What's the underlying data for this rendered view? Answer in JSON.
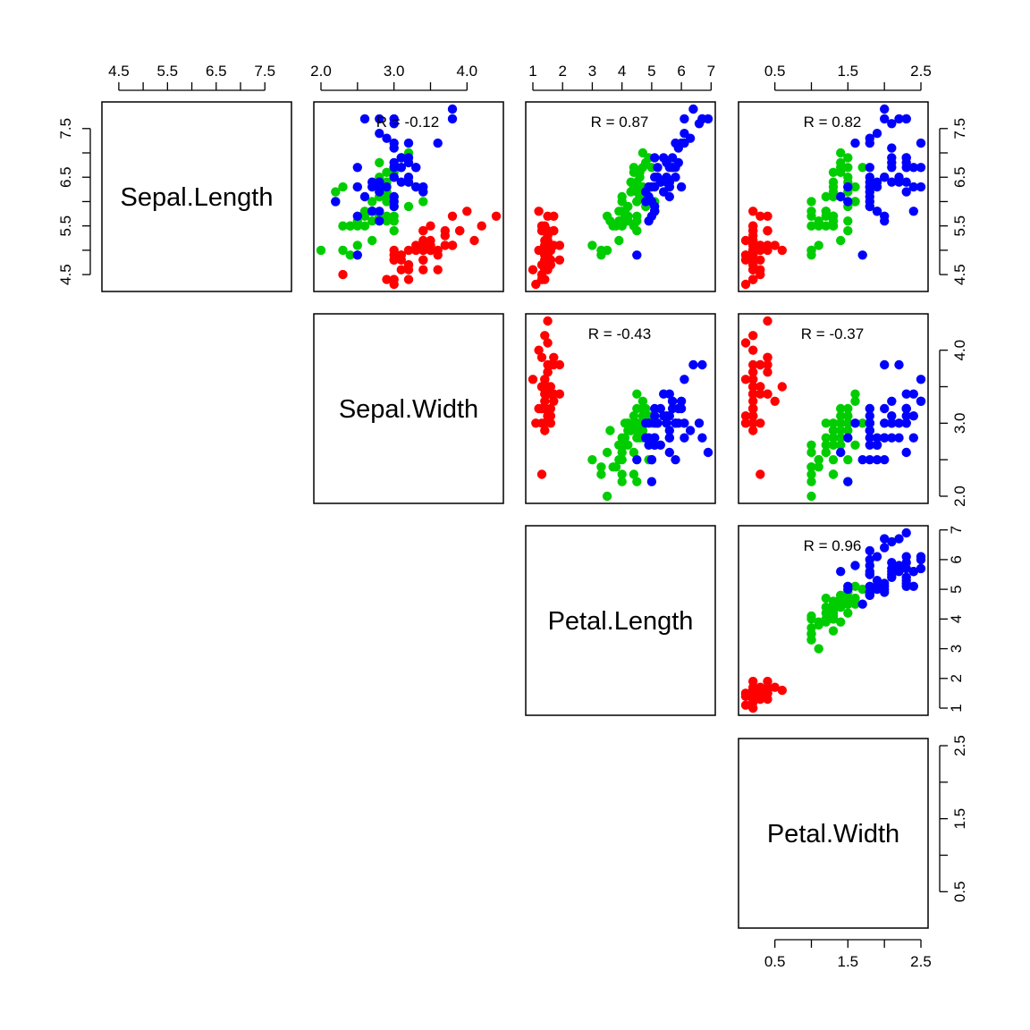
{
  "chart_data": {
    "type": "scatter",
    "variables": [
      "Sepal.Length",
      "Sepal.Width",
      "Petal.Length",
      "Petal.Width"
    ],
    "layout": "upper-triangle scatterplot matrix with variable names on diagonal",
    "ranges": {
      "Sepal.Length": [
        4.3,
        7.9
      ],
      "Sepal.Width": [
        2.0,
        4.4
      ],
      "Petal.Length": [
        1.0,
        6.9
      ],
      "Petal.Width": [
        0.1,
        2.5
      ]
    },
    "ticks": {
      "Sepal.Length": [
        "4.5",
        "5.5",
        "6.5",
        "7.5"
      ],
      "Sepal.Width": [
        "2.0",
        "3.0",
        "4.0"
      ],
      "Petal.Length": [
        "1",
        "2",
        "3",
        "4",
        "5",
        "6",
        "7"
      ],
      "Petal.Width": [
        "0.5",
        "1.5",
        "2.5"
      ]
    },
    "minor_ticks_at_half_steps": true,
    "panels": [
      {
        "x": "Sepal.Width",
        "y": "Sepal.Length",
        "r_label": "R = -0.12"
      },
      {
        "x": "Petal.Length",
        "y": "Sepal.Length",
        "r_label": "R = 0.87"
      },
      {
        "x": "Petal.Width",
        "y": "Sepal.Length",
        "r_label": "R = 0.82"
      },
      {
        "x": "Petal.Length",
        "y": "Sepal.Width",
        "r_label": "R = -0.43"
      },
      {
        "x": "Petal.Width",
        "y": "Sepal.Width",
        "r_label": "R = -0.37"
      },
      {
        "x": "Petal.Width",
        "y": "Petal.Length",
        "r_label": "R = 0.96"
      }
    ],
    "series": [
      {
        "color": "#ff0000",
        "points": [
          [
            5.1,
            3.5,
            1.4,
            0.2
          ],
          [
            4.9,
            3.0,
            1.4,
            0.2
          ],
          [
            4.7,
            3.2,
            1.3,
            0.2
          ],
          [
            4.6,
            3.1,
            1.5,
            0.2
          ],
          [
            5.0,
            3.6,
            1.4,
            0.2
          ],
          [
            5.4,
            3.9,
            1.7,
            0.4
          ],
          [
            4.6,
            3.4,
            1.4,
            0.3
          ],
          [
            5.0,
            3.4,
            1.5,
            0.2
          ],
          [
            4.4,
            2.9,
            1.4,
            0.2
          ],
          [
            4.9,
            3.1,
            1.5,
            0.1
          ],
          [
            5.4,
            3.7,
            1.5,
            0.2
          ],
          [
            4.8,
            3.4,
            1.6,
            0.2
          ],
          [
            4.8,
            3.0,
            1.4,
            0.1
          ],
          [
            4.3,
            3.0,
            1.1,
            0.1
          ],
          [
            5.8,
            4.0,
            1.2,
            0.2
          ],
          [
            5.7,
            4.4,
            1.5,
            0.4
          ],
          [
            5.4,
            3.9,
            1.3,
            0.4
          ],
          [
            5.1,
            3.5,
            1.4,
            0.3
          ],
          [
            5.7,
            3.8,
            1.7,
            0.3
          ],
          [
            5.1,
            3.8,
            1.5,
            0.3
          ],
          [
            5.4,
            3.4,
            1.7,
            0.2
          ],
          [
            5.1,
            3.7,
            1.5,
            0.4
          ],
          [
            4.6,
            3.6,
            1.0,
            0.2
          ],
          [
            5.1,
            3.3,
            1.7,
            0.5
          ],
          [
            4.8,
            3.4,
            1.9,
            0.2
          ],
          [
            5.0,
            3.0,
            1.6,
            0.2
          ],
          [
            5.0,
            3.4,
            1.6,
            0.4
          ],
          [
            5.2,
            3.5,
            1.5,
            0.2
          ],
          [
            5.2,
            3.4,
            1.4,
            0.2
          ],
          [
            4.7,
            3.2,
            1.6,
            0.2
          ],
          [
            4.8,
            3.1,
            1.6,
            0.2
          ],
          [
            5.4,
            3.4,
            1.5,
            0.4
          ],
          [
            5.2,
            4.1,
            1.5,
            0.1
          ],
          [
            5.5,
            4.2,
            1.4,
            0.2
          ],
          [
            4.9,
            3.1,
            1.5,
            0.2
          ],
          [
            5.0,
            3.2,
            1.2,
            0.2
          ],
          [
            5.5,
            3.5,
            1.3,
            0.2
          ],
          [
            4.9,
            3.6,
            1.4,
            0.1
          ],
          [
            4.4,
            3.0,
            1.3,
            0.2
          ],
          [
            5.1,
            3.4,
            1.5,
            0.2
          ],
          [
            5.0,
            3.5,
            1.3,
            0.3
          ],
          [
            4.5,
            2.3,
            1.3,
            0.3
          ],
          [
            4.4,
            3.2,
            1.3,
            0.2
          ],
          [
            5.0,
            3.5,
            1.6,
            0.6
          ],
          [
            5.1,
            3.8,
            1.9,
            0.4
          ],
          [
            4.8,
            3.0,
            1.4,
            0.3
          ],
          [
            5.1,
            3.8,
            1.6,
            0.2
          ],
          [
            4.6,
            3.2,
            1.4,
            0.2
          ],
          [
            5.3,
            3.7,
            1.5,
            0.2
          ],
          [
            5.0,
            3.3,
            1.4,
            0.2
          ]
        ]
      },
      {
        "color": "#00cd00",
        "points": [
          [
            7.0,
            3.2,
            4.7,
            1.4
          ],
          [
            6.4,
            3.2,
            4.5,
            1.5
          ],
          [
            6.9,
            3.1,
            4.9,
            1.5
          ],
          [
            5.5,
            2.3,
            4.0,
            1.3
          ],
          [
            6.5,
            2.8,
            4.6,
            1.5
          ],
          [
            5.7,
            2.8,
            4.5,
            1.3
          ],
          [
            6.3,
            3.3,
            4.7,
            1.6
          ],
          [
            4.9,
            2.4,
            3.3,
            1.0
          ],
          [
            6.6,
            2.9,
            4.6,
            1.3
          ],
          [
            5.2,
            2.7,
            3.9,
            1.4
          ],
          [
            5.0,
            2.0,
            3.5,
            1.0
          ],
          [
            5.9,
            3.0,
            4.2,
            1.5
          ],
          [
            6.0,
            2.2,
            4.0,
            1.0
          ],
          [
            6.1,
            2.9,
            4.7,
            1.4
          ],
          [
            5.6,
            2.9,
            3.6,
            1.3
          ],
          [
            6.7,
            3.1,
            4.4,
            1.4
          ],
          [
            5.6,
            3.0,
            4.5,
            1.5
          ],
          [
            5.8,
            2.7,
            4.1,
            1.0
          ],
          [
            6.2,
            2.2,
            4.5,
            1.5
          ],
          [
            5.6,
            2.5,
            3.9,
            1.1
          ],
          [
            5.9,
            3.2,
            4.8,
            1.8
          ],
          [
            6.1,
            2.8,
            4.0,
            1.3
          ],
          [
            6.3,
            2.5,
            4.9,
            1.5
          ],
          [
            6.1,
            2.8,
            4.7,
            1.2
          ],
          [
            6.4,
            2.9,
            4.3,
            1.3
          ],
          [
            6.6,
            3.0,
            4.4,
            1.4
          ],
          [
            6.8,
            2.8,
            4.8,
            1.4
          ],
          [
            6.7,
            3.0,
            5.0,
            1.7
          ],
          [
            6.0,
            2.9,
            4.5,
            1.5
          ],
          [
            5.7,
            2.6,
            3.5,
            1.0
          ],
          [
            5.5,
            2.4,
            3.8,
            1.1
          ],
          [
            5.5,
            2.4,
            3.7,
            1.0
          ],
          [
            5.8,
            2.7,
            3.9,
            1.2
          ],
          [
            6.0,
            2.7,
            5.1,
            1.6
          ],
          [
            5.4,
            3.0,
            4.5,
            1.5
          ],
          [
            6.0,
            3.4,
            4.5,
            1.6
          ],
          [
            6.7,
            3.1,
            4.7,
            1.5
          ],
          [
            6.3,
            2.3,
            4.4,
            1.3
          ],
          [
            5.6,
            3.0,
            4.1,
            1.3
          ],
          [
            5.5,
            2.5,
            4.0,
            1.3
          ],
          [
            5.5,
            2.6,
            4.4,
            1.2
          ],
          [
            6.1,
            3.0,
            4.6,
            1.4
          ],
          [
            5.8,
            2.6,
            4.0,
            1.2
          ],
          [
            5.0,
            2.3,
            3.3,
            1.0
          ],
          [
            5.6,
            2.7,
            4.2,
            1.3
          ],
          [
            5.7,
            3.0,
            4.2,
            1.2
          ],
          [
            5.7,
            2.9,
            4.2,
            1.3
          ],
          [
            6.2,
            2.9,
            4.3,
            1.3
          ],
          [
            5.1,
            2.5,
            3.0,
            1.1
          ],
          [
            5.7,
            2.8,
            4.1,
            1.3
          ]
        ]
      },
      {
        "color": "#0000ff",
        "points": [
          [
            6.3,
            3.3,
            6.0,
            2.5
          ],
          [
            5.8,
            2.7,
            5.1,
            1.9
          ],
          [
            7.1,
            3.0,
            5.9,
            2.1
          ],
          [
            6.3,
            2.9,
            5.6,
            1.8
          ],
          [
            6.5,
            3.0,
            5.8,
            2.2
          ],
          [
            7.6,
            3.0,
            6.6,
            2.1
          ],
          [
            4.9,
            2.5,
            4.5,
            1.7
          ],
          [
            7.3,
            2.9,
            6.3,
            1.8
          ],
          [
            6.7,
            2.5,
            5.8,
            1.8
          ],
          [
            7.2,
            3.6,
            6.1,
            2.5
          ],
          [
            6.5,
            3.2,
            5.1,
            2.0
          ],
          [
            6.4,
            2.7,
            5.3,
            1.9
          ],
          [
            6.8,
            3.0,
            5.5,
            2.1
          ],
          [
            5.7,
            2.5,
            5.0,
            2.0
          ],
          [
            5.8,
            2.8,
            5.1,
            2.4
          ],
          [
            6.4,
            3.2,
            5.3,
            2.3
          ],
          [
            6.5,
            3.0,
            5.5,
            1.8
          ],
          [
            7.7,
            3.8,
            6.7,
            2.2
          ],
          [
            7.7,
            2.6,
            6.9,
            2.3
          ],
          [
            6.0,
            2.2,
            5.0,
            1.5
          ],
          [
            6.9,
            3.2,
            5.7,
            2.3
          ],
          [
            5.6,
            2.8,
            4.9,
            2.0
          ],
          [
            7.7,
            2.8,
            6.7,
            2.0
          ],
          [
            6.3,
            2.7,
            4.9,
            1.8
          ],
          [
            6.7,
            3.3,
            5.7,
            2.1
          ],
          [
            7.2,
            3.2,
            6.0,
            1.8
          ],
          [
            6.2,
            2.8,
            4.8,
            1.8
          ],
          [
            6.1,
            3.0,
            4.9,
            1.8
          ],
          [
            6.4,
            2.8,
            5.6,
            2.1
          ],
          [
            7.2,
            3.0,
            5.8,
            1.6
          ],
          [
            7.4,
            2.8,
            6.1,
            1.9
          ],
          [
            7.9,
            3.8,
            6.4,
            2.0
          ],
          [
            6.4,
            2.8,
            5.6,
            2.2
          ],
          [
            6.3,
            2.8,
            5.1,
            1.5
          ],
          [
            6.1,
            2.6,
            5.6,
            1.4
          ],
          [
            7.7,
            3.0,
            6.1,
            2.3
          ],
          [
            6.3,
            3.4,
            5.6,
            2.4
          ],
          [
            6.4,
            3.1,
            5.5,
            1.8
          ],
          [
            6.0,
            3.0,
            4.8,
            1.8
          ],
          [
            6.9,
            3.1,
            5.4,
            2.1
          ],
          [
            6.7,
            3.1,
            5.6,
            2.4
          ],
          [
            6.9,
            3.1,
            5.1,
            2.3
          ],
          [
            5.8,
            2.7,
            5.1,
            1.9
          ],
          [
            6.8,
            3.2,
            5.9,
            2.3
          ],
          [
            6.7,
            3.3,
            5.7,
            2.5
          ],
          [
            6.7,
            3.0,
            5.2,
            2.3
          ],
          [
            6.3,
            2.5,
            5.0,
            1.9
          ],
          [
            6.5,
            3.0,
            5.2,
            2.0
          ],
          [
            6.2,
            3.4,
            5.4,
            2.3
          ],
          [
            5.9,
            3.0,
            5.1,
            1.8
          ]
        ]
      }
    ]
  }
}
